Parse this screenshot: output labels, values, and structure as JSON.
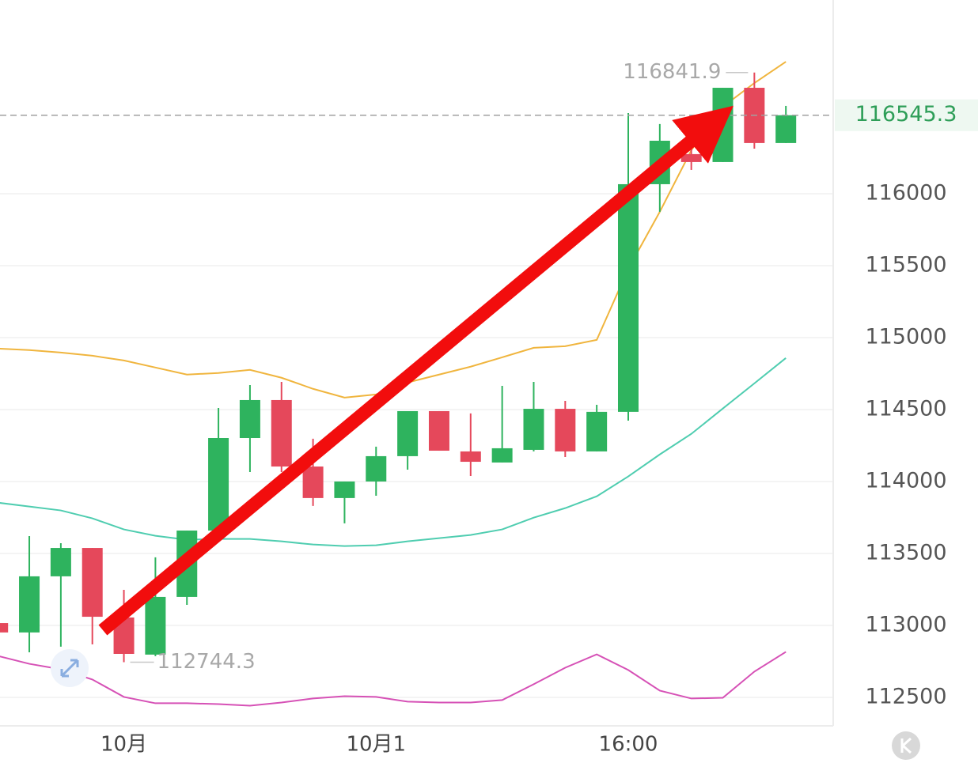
{
  "chart_data": {
    "type": "candlestick",
    "categories": [
      null,
      null,
      null,
      null,
      "10月",
      null,
      null,
      null,
      null,
      null,
      null,
      null,
      "10月1",
      null,
      null,
      null,
      null,
      null,
      null,
      null,
      "16:00",
      null,
      null,
      null,
      null,
      null
    ],
    "open": [
      113016,
      112951,
      113341,
      113538,
      113055,
      112797,
      113198,
      113659,
      114302,
      114566,
      114104,
      113885,
      114000,
      114176,
      114489,
      114209,
      114132,
      114220,
      114505,
      114209,
      114484,
      116066,
      116275,
      116220,
      116736,
      116352
    ],
    "high": [
      113016,
      113621,
      113571,
      113538,
      113247,
      113473,
      113659,
      114511,
      114670,
      114692,
      114297,
      114000,
      114242,
      114489,
      114489,
      114473,
      114665,
      114692,
      114560,
      114533,
      116560,
      116484,
      116329,
      116736,
      116841.9,
      116610
    ],
    "low": [
      112951,
      112813,
      112852,
      112868,
      112744.3,
      112786,
      113143,
      113659,
      114066,
      114066,
      113830,
      113709,
      113901,
      114082,
      114214,
      114038,
      114132,
      114209,
      114170,
      114209,
      114423,
      115874,
      116165,
      116220,
      116313,
      116352
    ],
    "close": [
      112951,
      113341,
      113538,
      113060,
      112802,
      113198,
      113659,
      114302,
      114566,
      114104,
      113885,
      114000,
      114176,
      114489,
      114214,
      114137,
      114231,
      114505,
      114209,
      114484,
      116066,
      116368,
      116220,
      116736,
      116352,
      116545.3
    ],
    "up_color": "#2eb35e",
    "down_color": "#e5485b",
    "overlays": [
      {
        "color": "#f0b53e",
        "values": [
          114924,
          114913,
          114896,
          114874,
          114841,
          114792,
          114743,
          114754,
          114776,
          114721,
          114644,
          114583,
          114605,
          114688,
          114743,
          114798,
          114863,
          114929,
          114940,
          114984,
          115478,
          115874,
          116302,
          116604,
          116769,
          116917
        ]
      },
      {
        "color": "#4fcdb0",
        "values": [
          113853,
          113826,
          113799,
          113744,
          113667,
          113623,
          113595,
          113601,
          113601,
          113584,
          113562,
          113551,
          113557,
          113584,
          113606,
          113628,
          113667,
          113749,
          113815,
          113897,
          114035,
          114188,
          114331,
          114507,
          114682,
          114858
        ]
      },
      {
        "color": "#d651b6",
        "values": [
          112788,
          112733,
          112695,
          112624,
          112503,
          112459,
          112459,
          112453,
          112442,
          112464,
          112492,
          112508,
          112503,
          112470,
          112464,
          112464,
          112481,
          112591,
          112706,
          112799,
          112690,
          112547,
          112492,
          112497,
          112679,
          112816
        ]
      }
    ],
    "ylim": [
      112302,
      117346
    ],
    "yticks": [
      112500,
      113000,
      113500,
      114000,
      114500,
      115000,
      115500,
      116000
    ],
    "grid": true
  }
}
